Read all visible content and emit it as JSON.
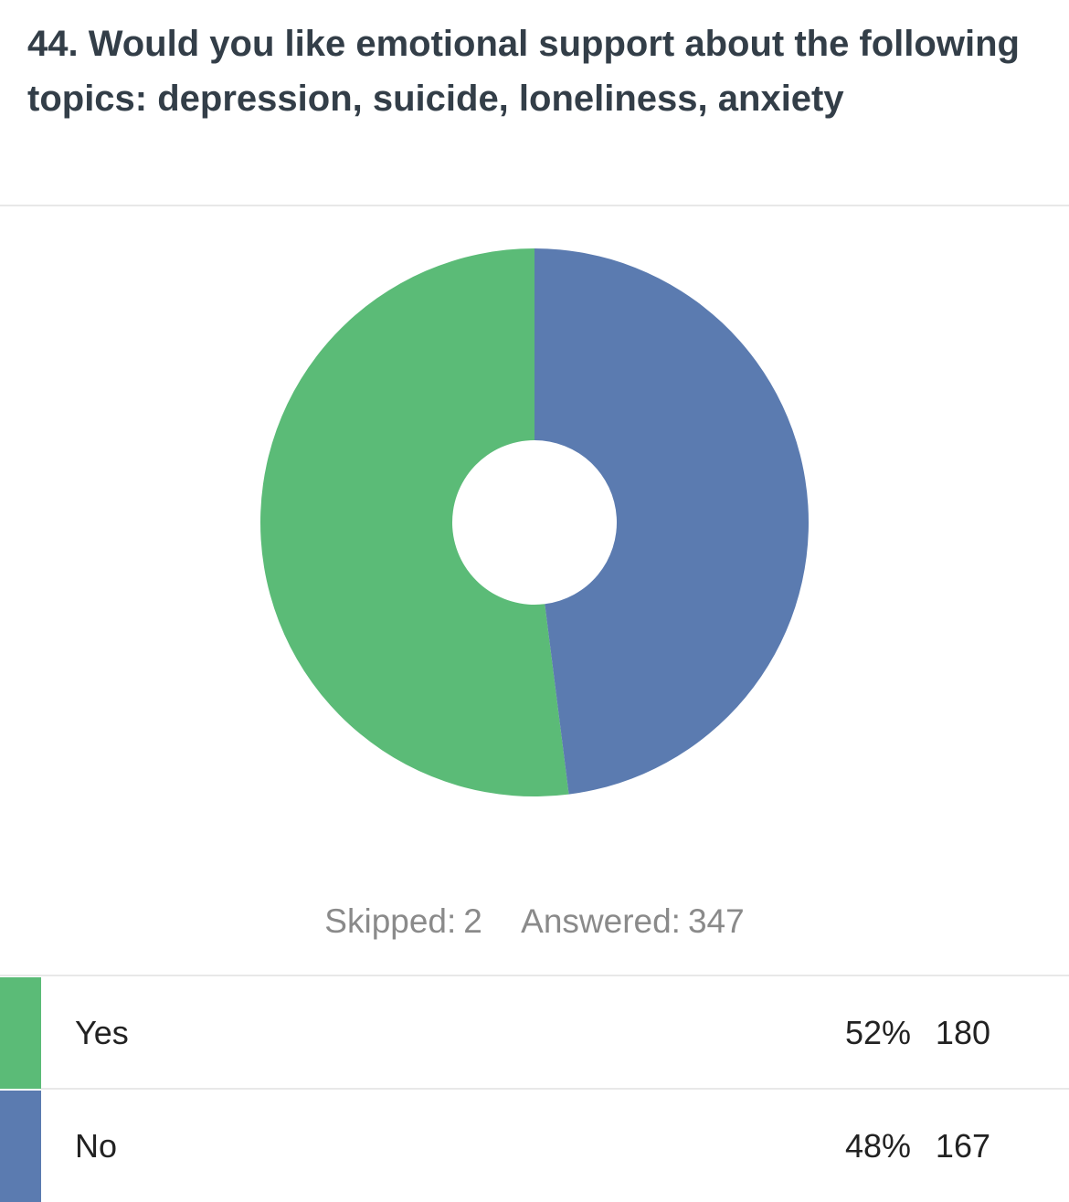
{
  "chart_data": {
    "type": "pie",
    "title": "44. Would you like emotional support about the following topics: depression, suicide, loneliness, anxiety",
    "categories": [
      "Yes",
      "No"
    ],
    "values": [
      52,
      48
    ],
    "value_labels": [
      "52%",
      "48%"
    ],
    "counts": [
      180,
      167
    ],
    "colors": [
      "#5bbb77",
      "#5b7bb0"
    ],
    "skipped_label": "Skipped:",
    "skipped": 2,
    "answered_label": "Answered:",
    "answered": 347
  }
}
